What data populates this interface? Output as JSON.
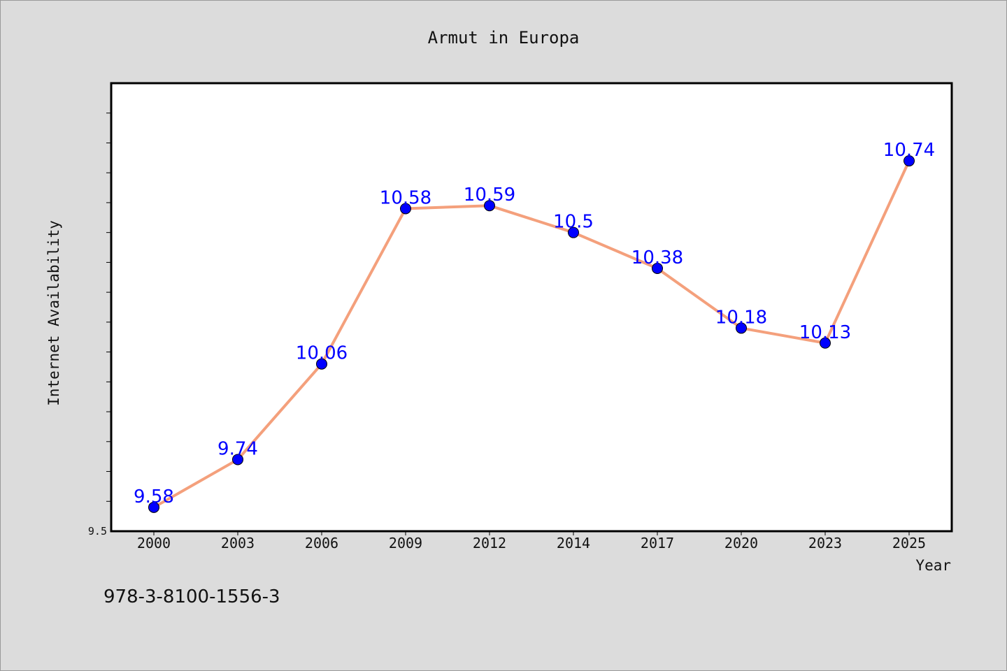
{
  "chart_data": {
    "type": "line",
    "title": "Armut in Europa",
    "xlabel": "Year",
    "ylabel": "Internet Availability",
    "categories": [
      "2000",
      "2003",
      "2006",
      "2009",
      "2012",
      "2014",
      "2017",
      "2020",
      "2023",
      "2025"
    ],
    "series": [
      {
        "values": [
          9.58,
          9.74,
          10.06,
          10.58,
          10.59,
          10.5,
          10.38,
          10.18,
          10.13,
          10.74
        ],
        "labels": [
          "9.58",
          "9.74",
          "10.06",
          "10.58",
          "10.59",
          "10.5",
          "10.38",
          "10.18",
          "10.13",
          "10.74"
        ],
        "line_color": "#f4a07c",
        "marker_color": "#0000ff"
      }
    ],
    "ylim": [
      9.5,
      11.0
    ],
    "yticks_labeled": [
      "9.5"
    ],
    "grid": false,
    "legend": "none"
  },
  "footnote": "978-3-8100-1556-3",
  "colors": {
    "background": "#dcdcdc",
    "plot_background": "#ffffff",
    "label_color": "#0000ff"
  }
}
